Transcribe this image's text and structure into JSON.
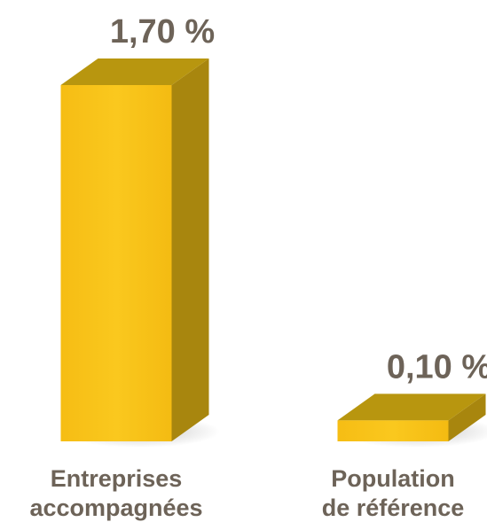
{
  "chart_data": {
    "type": "bar",
    "style": "3d",
    "categories": [
      [
        "Entreprises",
        "accompagnées"
      ],
      [
        "Population",
        "de référence"
      ]
    ],
    "values": [
      1.7,
      0.1
    ],
    "value_labels": [
      "1,70 %",
      "0,10 %"
    ],
    "ylim": [
      0,
      1.7
    ],
    "grid": false,
    "colors": {
      "front": "#f8c31a",
      "side": "#a8860e",
      "top": "#b8960f",
      "label": "#6d6358"
    }
  }
}
